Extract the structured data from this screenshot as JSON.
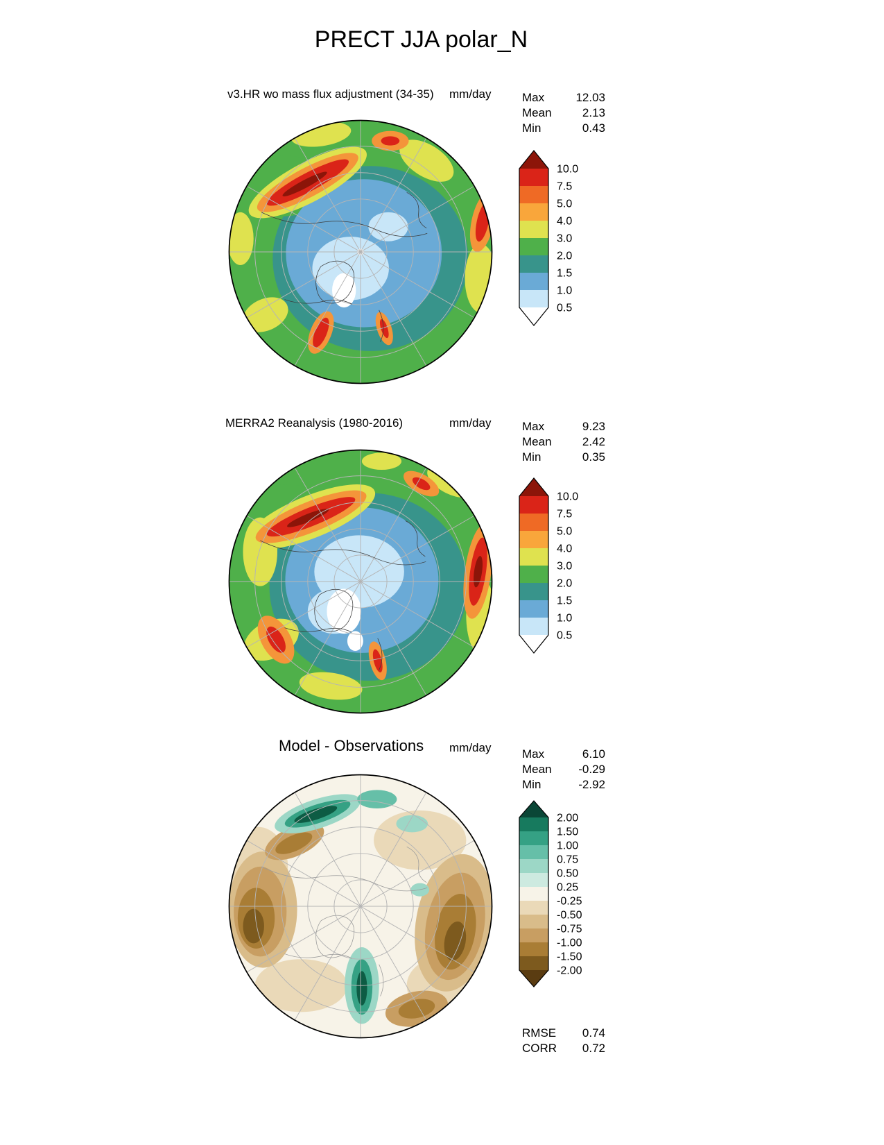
{
  "title": "PRECT JJA polar_N",
  "panels": [
    {
      "subtitle": "v3.HR wo mass flux adjustment (34-35)",
      "units": "mm/day",
      "stats": [
        {
          "label": "Max",
          "value": "12.03"
        },
        {
          "label": "Mean",
          "value": "2.13"
        },
        {
          "label": "Min",
          "value": "0.43"
        }
      ],
      "colorbar": {
        "labels": [
          "10.0",
          "7.5",
          "5.0",
          "4.0",
          "3.0",
          "2.0",
          "1.5",
          "1.0",
          "0.5"
        ],
        "colors": [
          "#8c1509",
          "#da2418",
          "#ef6a25",
          "#f9a63b",
          "#dfe24f",
          "#4fb04a",
          "#38948b",
          "#6aaad6",
          "#c8e6f8",
          "#ffffff"
        ]
      }
    },
    {
      "subtitle": "MERRA2 Reanalysis (1980-2016)",
      "units": "mm/day",
      "stats": [
        {
          "label": "Max",
          "value": "9.23"
        },
        {
          "label": "Mean",
          "value": "2.42"
        },
        {
          "label": "Min",
          "value": "0.35"
        }
      ],
      "colorbar": {
        "labels": [
          "10.0",
          "7.5",
          "5.0",
          "4.0",
          "3.0",
          "2.0",
          "1.5",
          "1.0",
          "0.5"
        ],
        "colors": [
          "#8c1509",
          "#da2418",
          "#ef6a25",
          "#f9a63b",
          "#dfe24f",
          "#4fb04a",
          "#38948b",
          "#6aaad6",
          "#c8e6f8",
          "#ffffff"
        ]
      }
    },
    {
      "subtitle": "Model - Observations",
      "units": "mm/day",
      "stats": [
        {
          "label": "Max",
          "value": "6.10"
        },
        {
          "label": "Mean",
          "value": "-0.29"
        },
        {
          "label": "Min",
          "value": "-2.92"
        }
      ],
      "colorbar": {
        "labels": [
          "2.00",
          "1.50",
          "1.00",
          "0.75",
          "0.50",
          "0.25",
          "-0.25",
          "-0.50",
          "-0.75",
          "-1.00",
          "-1.50",
          "-2.00"
        ],
        "colors": [
          "#0a4636",
          "#177a5e",
          "#35a184",
          "#66bfa8",
          "#9cd7c6",
          "#cdeae0",
          "#f7f3e8",
          "#ead9b8",
          "#d9bc8a",
          "#c89e62",
          "#a97d35",
          "#7d5a1e",
          "#5a3c11"
        ]
      },
      "metrics": [
        {
          "label": "RMSE",
          "value": "0.74"
        },
        {
          "label": "CORR",
          "value": "0.72"
        }
      ]
    }
  ],
  "chart_data": [
    {
      "type": "heatmap",
      "title": "v3.HR wo mass flux adjustment (34-35)",
      "variable": "PRECT",
      "season": "JJA",
      "region": "polar_N (north polar stereographic map)",
      "units": "mm/day",
      "stats": {
        "max": 12.03,
        "mean": 2.13,
        "min": 0.43
      },
      "contour_levels": [
        0.5,
        1.0,
        1.5,
        2.0,
        3.0,
        4.0,
        5.0,
        7.5,
        10.0
      ],
      "palette": [
        "#ffffff",
        "#c8e6f8",
        "#6aaad6",
        "#38948b",
        "#4fb04a",
        "#dfe24f",
        "#f9a63b",
        "#ef6a25",
        "#da2418",
        "#8c1509"
      ],
      "legend_position": "right",
      "grid": "polar graticule on"
    },
    {
      "type": "heatmap",
      "title": "MERRA2 Reanalysis (1980-2016)",
      "variable": "PRECT",
      "season": "JJA",
      "region": "polar_N (north polar stereographic map)",
      "units": "mm/day",
      "stats": {
        "max": 9.23,
        "mean": 2.42,
        "min": 0.35
      },
      "contour_levels": [
        0.5,
        1.0,
        1.5,
        2.0,
        3.0,
        4.0,
        5.0,
        7.5,
        10.0
      ],
      "palette": [
        "#ffffff",
        "#c8e6f8",
        "#6aaad6",
        "#38948b",
        "#4fb04a",
        "#dfe24f",
        "#f9a63b",
        "#ef6a25",
        "#da2418",
        "#8c1509"
      ],
      "legend_position": "right",
      "grid": "polar graticule on"
    },
    {
      "type": "heatmap",
      "title": "Model - Observations",
      "variable": "PRECT difference",
      "season": "JJA",
      "region": "polar_N (north polar stereographic map)",
      "units": "mm/day",
      "stats": {
        "max": 6.1,
        "mean": -0.29,
        "min": -2.92,
        "rmse": 0.74,
        "corr": 0.72
      },
      "contour_levels": [
        -2.0,
        -1.5,
        -1.0,
        -0.75,
        -0.5,
        -0.25,
        0.25,
        0.5,
        0.75,
        1.0,
        1.5,
        2.0
      ],
      "palette": [
        "#5a3c11",
        "#7d5a1e",
        "#a97d35",
        "#c89e62",
        "#d9bc8a",
        "#ead9b8",
        "#f7f3e8",
        "#cdeae0",
        "#9cd7c6",
        "#66bfa8",
        "#35a184",
        "#177a5e",
        "#0a4636"
      ],
      "legend_position": "right",
      "grid": "polar graticule on"
    }
  ]
}
